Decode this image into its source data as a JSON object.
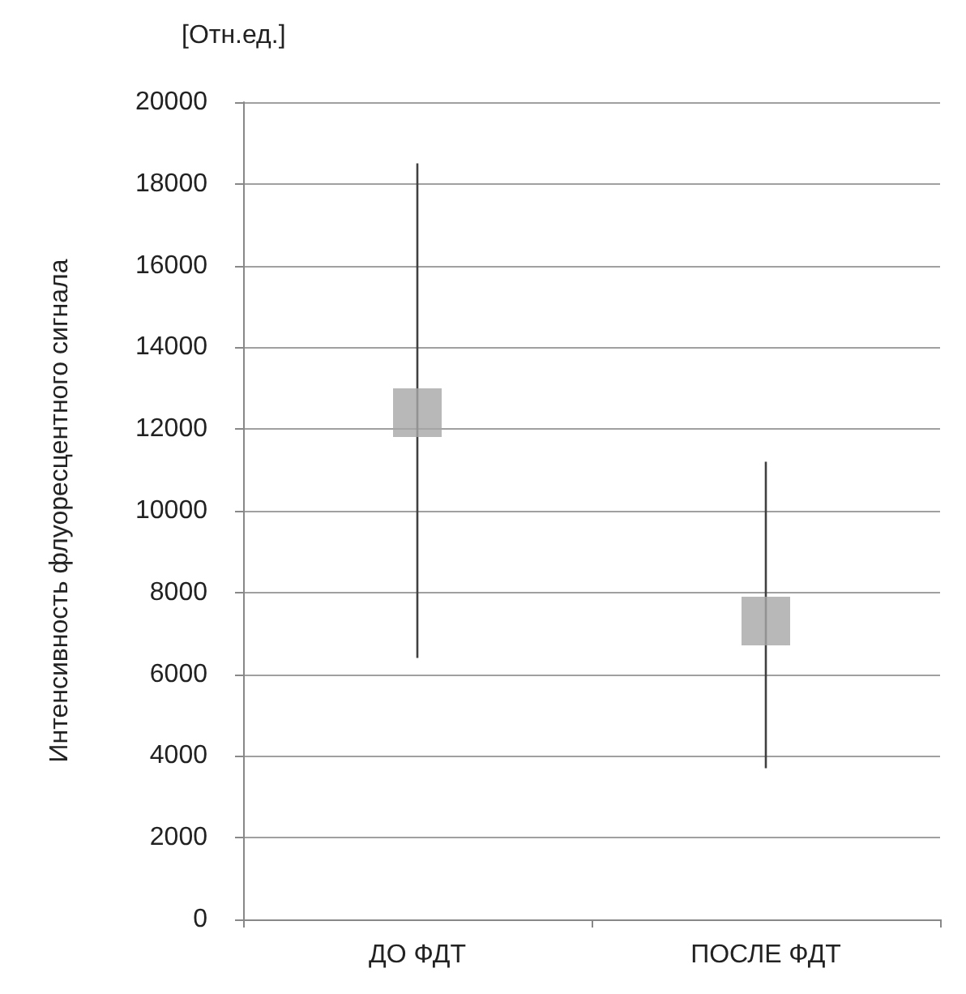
{
  "chart_data": {
    "type": "scatter",
    "ylabel": "Интенсивность флуоресцентного сигнала",
    "annotations": [
      "[Отн.ед.]"
    ],
    "categories": [
      "ДО ФДТ",
      "ПОСЛЕ ФДТ"
    ],
    "series": [
      {
        "color": "#a6a6a6",
        "values": [
          12400,
          7300
        ],
        "errors": [
          [
            6400,
            18500
          ],
          [
            3700,
            11200
          ]
        ]
      }
    ],
    "ylim": [
      0,
      20000
    ],
    "yticks": [
      0,
      2000,
      4000,
      6000,
      8000,
      10000,
      12000,
      14000,
      16000,
      18000,
      20000
    ],
    "grid": "y",
    "marker": "square"
  }
}
